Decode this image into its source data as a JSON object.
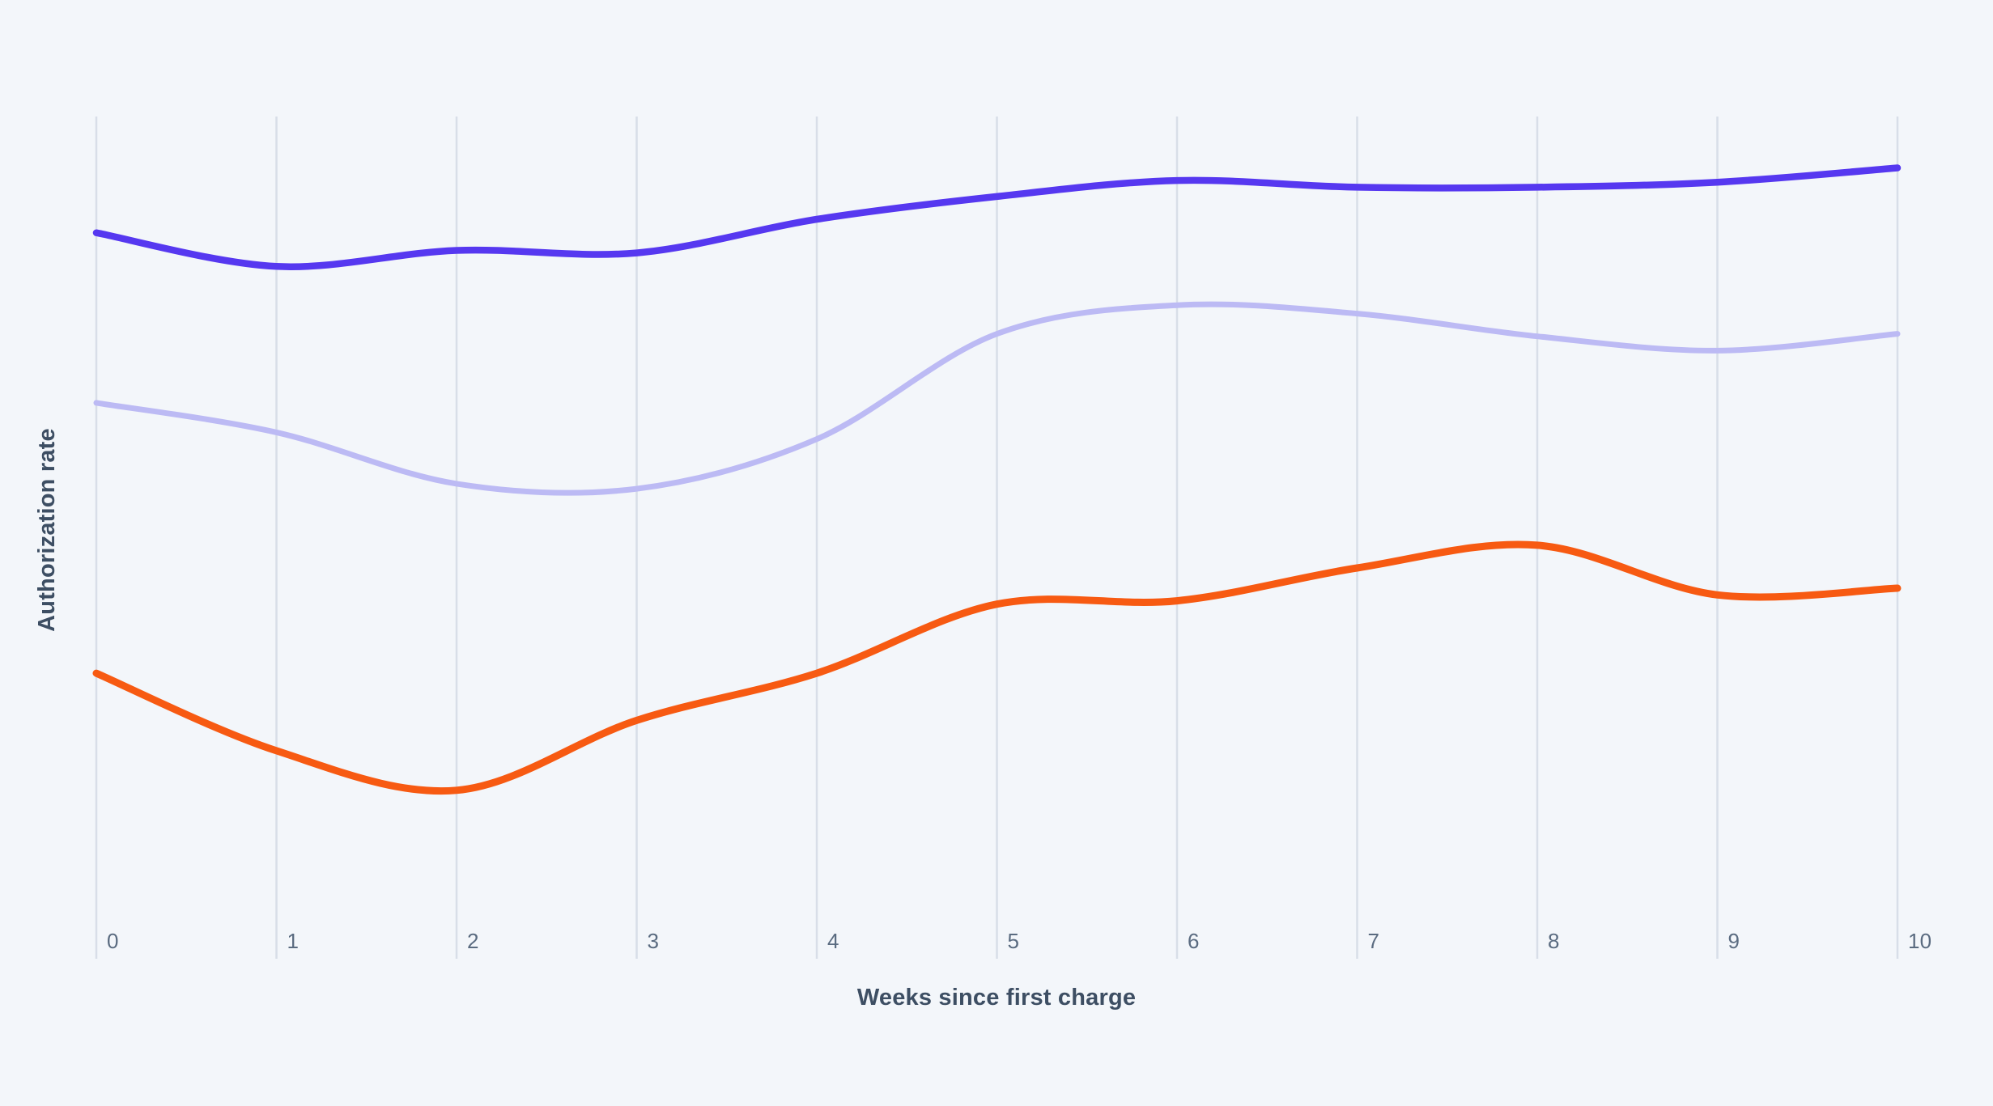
{
  "page": {
    "background_color": "#f3f6fa"
  },
  "chart_data": {
    "type": "line",
    "title": "",
    "xlabel": "Weeks since first charge",
    "ylabel": "Authorization rate",
    "x": [
      0,
      1,
      2,
      3,
      4,
      5,
      6,
      7,
      8,
      9,
      10
    ],
    "x_tick_labels": [
      "0",
      "1",
      "2",
      "3",
      "4",
      "5",
      "6",
      "7",
      "8",
      "9",
      "10"
    ],
    "y_axis_note": "no numeric y ticks shown; values below are normalized 0-1 fractions of plot height",
    "ylim": [
      0,
      1
    ],
    "grid": "vertical-only",
    "legend_position": "none",
    "series": [
      {
        "name": "top-line-indigo",
        "color": "#5638f0",
        "stroke_width": 8.5,
        "values": [
          0.862,
          0.822,
          0.841,
          0.838,
          0.878,
          0.905,
          0.924,
          0.916,
          0.916,
          0.922,
          0.939
        ]
      },
      {
        "name": "middle-line-lavender",
        "color": "#bcbaf4",
        "stroke_width": 7,
        "values": [
          0.66,
          0.625,
          0.564,
          0.558,
          0.617,
          0.742,
          0.776,
          0.766,
          0.739,
          0.722,
          0.742
        ]
      },
      {
        "name": "bottom-line-orange",
        "color": "#f75a12",
        "stroke_width": 9,
        "values": [
          0.339,
          0.247,
          0.2,
          0.283,
          0.339,
          0.421,
          0.425,
          0.464,
          0.491,
          0.432,
          0.44
        ]
      }
    ],
    "axis": {
      "gridline_color": "#d8dee8",
      "tick_label_color": "#5a6b80",
      "title_color": "#3d4e63"
    }
  }
}
